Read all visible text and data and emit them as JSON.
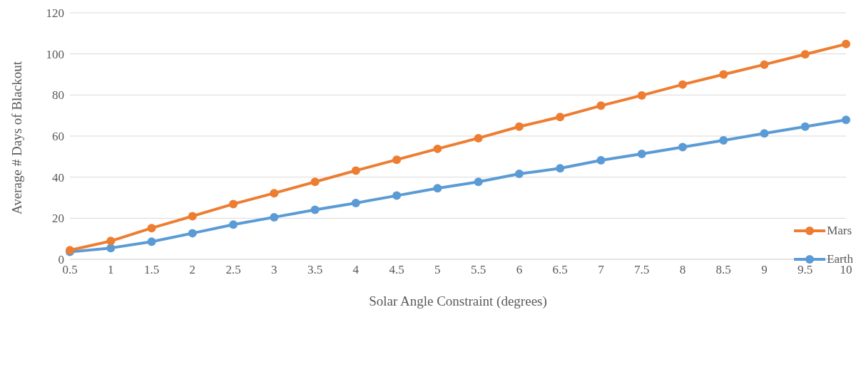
{
  "chart_data": {
    "type": "line",
    "xlabel": "Solar Angle Constraint (degrees)",
    "ylabel": "Average # Days of Blackout",
    "categories": [
      "0.5",
      "1",
      "1.5",
      "2",
      "2.5",
      "3",
      "3.5",
      "4",
      "4.5",
      "5",
      "5.5",
      "6",
      "6.5",
      "7",
      "7.5",
      "8",
      "8.5",
      "9",
      "9.5",
      "10"
    ],
    "series": [
      {
        "name": "Mars",
        "color": "#ed7d31",
        "values": [
          4.4,
          8.9,
          15.2,
          21,
          26.9,
          32.2,
          37.7,
          43.2,
          48.5,
          53.8,
          59,
          64.6,
          69.3,
          74.8,
          79.8,
          85.1,
          90,
          94.8,
          99.8,
          104.8
        ]
      },
      {
        "name": "Earth",
        "color": "#5b9bd5",
        "values": [
          3.6,
          5.5,
          8.6,
          12.7,
          16.9,
          20.5,
          24.1,
          27.4,
          31,
          34.6,
          37.7,
          41.6,
          44.3,
          48.2,
          51.3,
          54.6,
          57.9,
          61.3,
          64.6,
          67.9
        ]
      }
    ],
    "ylim": [
      0,
      120
    ],
    "yticks": [
      0,
      20,
      40,
      60,
      80,
      100,
      120
    ],
    "grid": "y",
    "legend": "bottom right",
    "marker": "circle",
    "line_style": "solid"
  }
}
